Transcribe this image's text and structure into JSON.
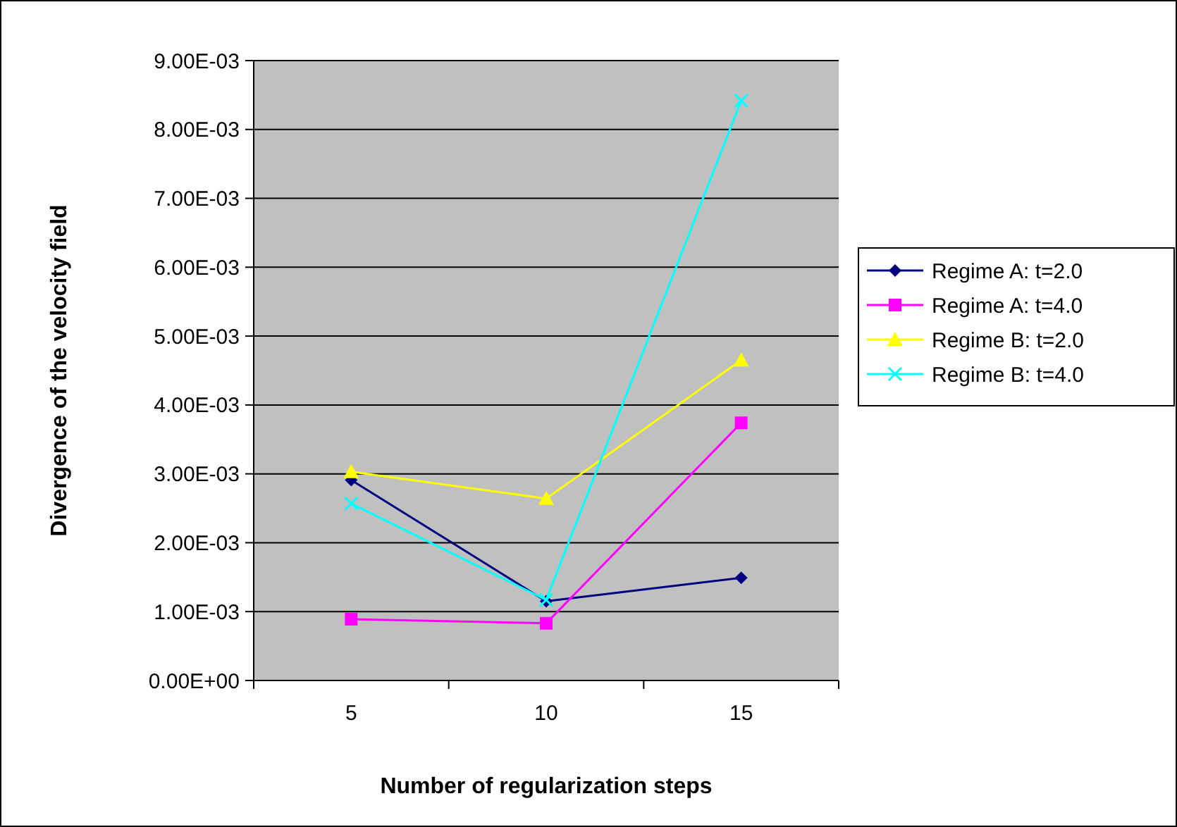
{
  "chart_data": {
    "type": "line",
    "xlabel": "Number of regularization steps",
    "ylabel": "Divergence of the velocity field",
    "categories": [
      "5",
      "10",
      "15"
    ],
    "series": [
      {
        "name": "Regime A: t=2.0",
        "color": "#000080",
        "marker": "diamond",
        "values": [
          0.00291,
          0.00115,
          0.00149
        ]
      },
      {
        "name": "Regime A: t=4.0",
        "color": "#ff00ff",
        "marker": "square",
        "values": [
          0.00089,
          0.00083,
          0.00374
        ]
      },
      {
        "name": "Regime B: t=2.0",
        "color": "#ffff00",
        "marker": "triangle",
        "values": [
          0.00303,
          0.00264,
          0.00465
        ]
      },
      {
        "name": "Regime B: t=4.0",
        "color": "#00ffff",
        "marker": "cross",
        "values": [
          0.00257,
          0.00117,
          0.00842
        ]
      }
    ],
    "ylim": [
      0,
      0.009
    ],
    "yticks": [
      {
        "value": 0,
        "label": "0.00E+00"
      },
      {
        "value": 0.001,
        "label": "1.00E-03"
      },
      {
        "value": 0.002,
        "label": "2.00E-03"
      },
      {
        "value": 0.003,
        "label": "3.00E-03"
      },
      {
        "value": 0.004,
        "label": "4.00E-03"
      },
      {
        "value": 0.005,
        "label": "5.00E-03"
      },
      {
        "value": 0.006,
        "label": "6.00E-03"
      },
      {
        "value": 0.007,
        "label": "7.00E-03"
      },
      {
        "value": 0.008,
        "label": "8.00E-03"
      },
      {
        "value": 0.009,
        "label": "9.00E-03"
      }
    ],
    "grid": "y",
    "legend": "right"
  }
}
